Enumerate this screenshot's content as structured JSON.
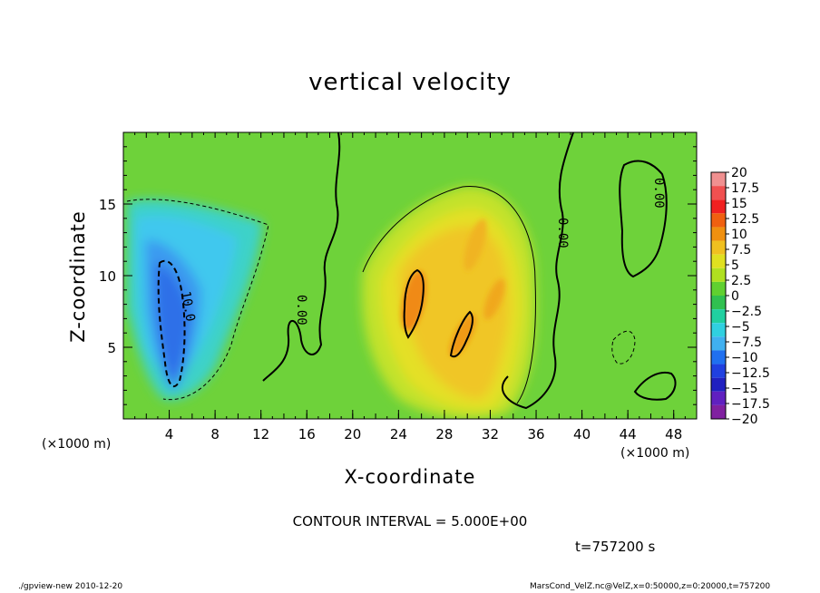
{
  "chart_data": {
    "type": "heatmap",
    "title": "vertical velocity",
    "xlabel": "X-coordinate",
    "ylabel": "Z-coordinate",
    "x_unit": "(×1000 m)",
    "xlim": [
      0,
      50
    ],
    "ylim": [
      0,
      20
    ],
    "x_ticks": [
      4,
      8,
      12,
      16,
      20,
      24,
      28,
      32,
      36,
      40,
      44,
      48
    ],
    "y_ticks": [
      5,
      10,
      15
    ],
    "colorbar": {
      "levels": [
        20,
        17.5,
        15,
        12.5,
        10,
        7.5,
        5,
        2.5,
        0,
        -2.5,
        -5,
        -7.5,
        -10,
        -12.5,
        -15,
        -17.5,
        -20
      ],
      "labels": [
        "20",
        "17.5",
        "15",
        "12.5",
        "10",
        "7.5",
        "5",
        "2.5",
        "0",
        "−2.5",
        "−5",
        "−7.5",
        "−10",
        "−12.5",
        "−15",
        "−17.5",
        "−20"
      ],
      "colors": [
        "#f09090",
        "#f05050",
        "#f02020",
        "#f06010",
        "#f09010",
        "#f0c020",
        "#e0e020",
        "#b0e020",
        "#60d030",
        "#30c050",
        "#20d0a0",
        "#30d0e0",
        "#40b0f0",
        "#2070f0",
        "#2040e0",
        "#2020c0",
        "#6020c0",
        "#8020a0"
      ]
    },
    "features": [
      {
        "kind": "downdraft",
        "x": 4.5,
        "z": 8,
        "peak": -12
      },
      {
        "kind": "updraft",
        "x": 25.5,
        "z": 8.5,
        "peak": 12
      },
      {
        "kind": "updraft",
        "x": 30.5,
        "z": 6,
        "peak": 11
      }
    ],
    "contour_labels": [
      "10.0",
      "0.00",
      "0.00",
      "0.00"
    ]
  },
  "contour_interval": "CONTOUR INTERVAL = 5.000E+00",
  "time_label": "t=757200 s",
  "footer_left": "./gpview-new  2010-12-20",
  "footer_right": "MarsCond_VelZ.nc@VelZ,x=0:50000,z=0:20000,t=757200"
}
